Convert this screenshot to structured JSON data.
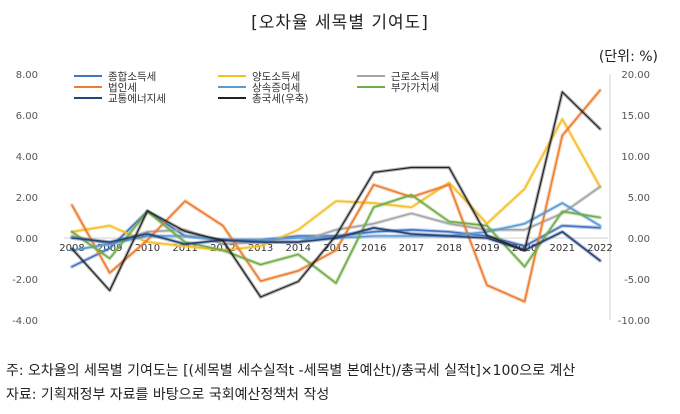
{
  "title": "[오차율 세목별 기여도]",
  "unit": "(단위: %)",
  "notes": [
    "주: 오차율의 세목별 기여도는 [(세목별 세수실적t -세목별 본예산t)/총국세 실적t]×100으로 계산",
    "자료: 기획재정부 자료를 바탕으로 국회예산정책처 작성"
  ],
  "chart_data": {
    "type": "line",
    "x": [
      "2008",
      "2009",
      "2010",
      "2011",
      "2012",
      "2013",
      "2014",
      "2015",
      "2016",
      "2017",
      "2018",
      "2019",
      "2020",
      "2021",
      "2022"
    ],
    "left_axis": {
      "ylim": [
        -4,
        8
      ],
      "ticks": [
        "-4.00",
        "-2.00",
        "0.00",
        "2.00",
        "4.00",
        "6.00",
        "8.00"
      ]
    },
    "right_axis": {
      "ylim": [
        -10,
        20
      ],
      "ticks": [
        "-10.00",
        "-5.00",
        "0.00",
        "5.00",
        "10.00",
        "15.00",
        "20.00"
      ]
    },
    "legend_placement": "top",
    "series": [
      {
        "name": "종합소득세",
        "color": "#4472c4",
        "axis": "left",
        "width": 1.6,
        "values": [
          -1.4,
          -0.5,
          1.3,
          0.1,
          -0.1,
          -0.1,
          0.1,
          0.1,
          0.3,
          0.4,
          0.3,
          0.1,
          -0.4,
          0.6,
          0.5
        ]
      },
      {
        "name": "양도소득세",
        "color": "#f5bf2a",
        "axis": "left",
        "width": 1.6,
        "values": [
          0.3,
          0.6,
          -0.2,
          -0.4,
          -0.6,
          -0.4,
          0.4,
          1.8,
          1.7,
          1.5,
          2.7,
          0.7,
          2.4,
          5.8,
          2.5
        ]
      },
      {
        "name": "근로소득세",
        "color": "#a5a5a5",
        "axis": "left",
        "width": 1.6,
        "values": [
          0.1,
          -0.3,
          0.3,
          0.4,
          -0.3,
          -0.2,
          -0.2,
          0.4,
          0.7,
          1.2,
          0.7,
          0.4,
          0.4,
          1.2,
          2.5
        ]
      },
      {
        "name": "법인세",
        "color": "#ed7d31",
        "axis": "left",
        "width": 1.6,
        "values": [
          1.6,
          -1.7,
          -0.1,
          1.8,
          0.6,
          -2.1,
          -1.6,
          -0.6,
          2.6,
          2.0,
          2.6,
          -2.3,
          -3.1,
          5.0,
          7.2
        ]
      },
      {
        "name": "상속증여세",
        "color": "#5b9bd5",
        "axis": "left",
        "width": 1.6,
        "values": [
          -0.6,
          -0.3,
          0.1,
          0.1,
          -0.1,
          -0.1,
          0.0,
          0.0,
          0.1,
          0.1,
          0.1,
          0.3,
          0.7,
          1.7,
          0.6
        ]
      },
      {
        "name": "부가가치세",
        "color": "#70ad47",
        "axis": "left",
        "width": 1.6,
        "values": [
          0.3,
          -1.0,
          1.3,
          -0.2,
          -0.6,
          -1.3,
          -0.8,
          -2.2,
          1.5,
          2.1,
          0.8,
          0.6,
          -1.4,
          1.3,
          1.0
        ]
      },
      {
        "name": "교통에너지세",
        "color": "#264478",
        "axis": "left",
        "width": 1.6,
        "values": [
          0.0,
          -0.2,
          0.2,
          -0.3,
          -0.1,
          -0.2,
          -0.2,
          0.0,
          0.5,
          0.2,
          0.1,
          0.0,
          -0.6,
          0.3,
          -1.1
        ]
      },
      {
        "name": "총국세(우축)",
        "color": "#222222",
        "axis": "right",
        "width": 1.2,
        "values": [
          -1.3,
          -6.4,
          3.3,
          0.8,
          -0.3,
          -7.2,
          -5.3,
          0.3,
          8.0,
          8.6,
          8.6,
          0.3,
          -1.5,
          17.8,
          13.3
        ]
      }
    ]
  }
}
